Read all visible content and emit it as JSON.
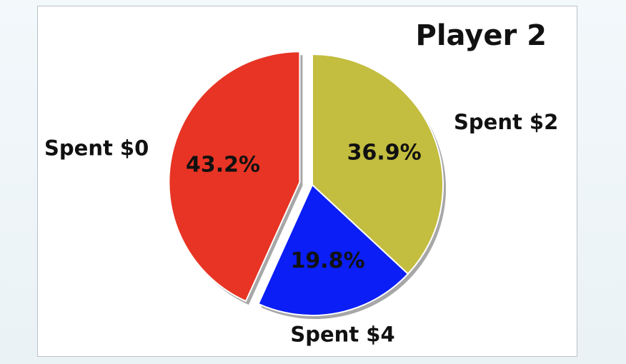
{
  "chart_data": {
    "type": "pie",
    "title": "Player 2",
    "slices": [
      {
        "label": "Spent $2",
        "value": 36.9,
        "pct_label": "36.9%",
        "color": "#c3bd40"
      },
      {
        "label": "Spent $4",
        "value": 19.8,
        "pct_label": "19.8%",
        "color": "#0a1ef5"
      },
      {
        "label": "Spent $0",
        "value": 43.2,
        "pct_label": "43.2%",
        "color": "#e83424"
      }
    ],
    "start": "12 o'clock",
    "direction": "clockwise",
    "exploded": [
      "Spent $0"
    ],
    "shadow": true
  }
}
